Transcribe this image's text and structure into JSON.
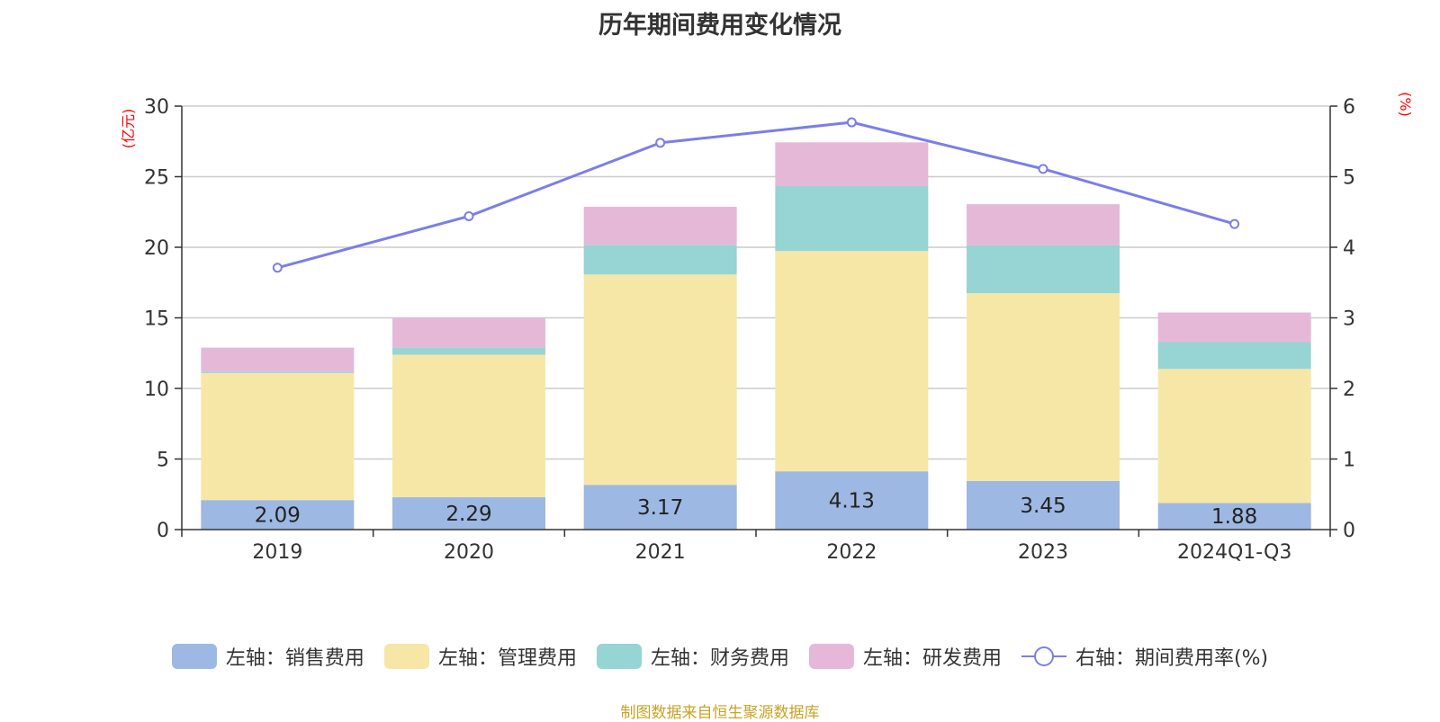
{
  "title": "历年期间费用变化情况",
  "footer": "制图数据来自恒生聚源数据库",
  "colors": {
    "sales": "#9db8e2",
    "admin": "#f7e7a6",
    "finance": "#97d4d4",
    "rd": "#e6b8d8",
    "rate": "#7b7ee8",
    "axis_unit": "#ff0000"
  },
  "chart_data": {
    "type": "bar",
    "stacked": true,
    "categories": [
      "2019",
      "2020",
      "2021",
      "2022",
      "2023",
      "2024Q1-Q3"
    ],
    "series": [
      {
        "key": "sales",
        "name": "左轴：销售费用",
        "axis": "left",
        "values": [
          2.09,
          2.29,
          3.17,
          4.13,
          3.45,
          1.88
        ],
        "show_labels": true
      },
      {
        "key": "admin",
        "name": "左轴：管理费用",
        "axis": "left",
        "values": [
          9.0,
          10.1,
          14.9,
          15.6,
          13.3,
          9.5
        ]
      },
      {
        "key": "finance",
        "name": "左轴：财务费用",
        "axis": "left",
        "values": [
          0.1,
          0.5,
          2.1,
          4.6,
          3.4,
          1.9
        ]
      },
      {
        "key": "rd",
        "name": "左轴：研发费用",
        "axis": "left",
        "values": [
          1.7,
          2.1,
          2.7,
          3.1,
          2.9,
          2.1
        ]
      },
      {
        "key": "rate",
        "name": "右轴：期间费用率(%)",
        "axis": "right",
        "type": "line",
        "values": [
          3.71,
          4.44,
          5.48,
          5.77,
          5.11,
          4.33
        ]
      }
    ],
    "left_axis": {
      "unit_label": "(亿元)",
      "ylim": [
        0,
        30
      ],
      "ticks": [
        0,
        5,
        10,
        15,
        20,
        25,
        30
      ]
    },
    "right_axis": {
      "unit_label": "(%)",
      "ylim": [
        0,
        6
      ],
      "ticks": [
        0,
        1,
        2,
        3,
        4,
        5,
        6
      ]
    },
    "grid": true,
    "legend_position": "bottom"
  }
}
